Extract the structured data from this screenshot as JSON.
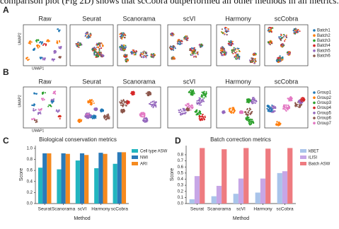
{
  "text": "comparison plot (Fig 2D) shows that scCobra outperformed all other methods in all metrics.",
  "panel_a": {
    "label": "A",
    "x_label": "UMAP1",
    "y_label": "UMAP2",
    "methods": [
      "Raw",
      "Seurat",
      "Scanorama",
      "scVI",
      "Harmony",
      "scCobra"
    ],
    "legend": [
      "Batch1",
      "Batch2",
      "Batch3",
      "Batch4",
      "Batch5",
      "Batch6"
    ],
    "colors": [
      "#1f77b4",
      "#ff7f0e",
      "#2ca02c",
      "#d62728",
      "#9467bd",
      "#8c564b"
    ]
  },
  "panel_b": {
    "label": "B",
    "x_label": "UMAP1",
    "y_label": "UMAP2",
    "methods": [
      "Raw",
      "Seurat",
      "Scanorama",
      "scVI",
      "Harmony",
      "scCobra"
    ],
    "legend": [
      "Group1",
      "Group2",
      "Group3",
      "Group4",
      "Group5",
      "Group6",
      "Group7"
    ],
    "colors": [
      "#1f77b4",
      "#ff7f0e",
      "#2ca02c",
      "#d62728",
      "#9467bd",
      "#8c564b",
      "#e377c2"
    ]
  },
  "chart_data": [
    {
      "type": "bar",
      "label": "C",
      "title": "Biological conservation metrics",
      "x_label": "Method",
      "y_label": "Score",
      "categories": [
        "Seurat",
        "Scanorama",
        "scVI",
        "Harmony",
        "scCobra"
      ],
      "series": [
        {
          "name": "Cell type ASW",
          "color": "#22b5bf",
          "values": [
            0.65,
            0.62,
            0.78,
            0.64,
            0.72
          ]
        },
        {
          "name": "NMI",
          "color": "#2a7ab9",
          "values": [
            0.91,
            0.91,
            0.91,
            0.92,
            0.93
          ]
        },
        {
          "name": "ARI",
          "color": "#f58a1f",
          "values": [
            0.91,
            0.9,
            0.88,
            0.9,
            0.93
          ]
        }
      ],
      "ylim": [
        0,
        1.05
      ],
      "yticks": [
        {
          "value": 0,
          "label": "0.0"
        },
        {
          "value": 0.2,
          "label": "0.2"
        },
        {
          "value": 0.4,
          "label": "0.4"
        },
        {
          "value": 0.6,
          "label": "0.6"
        },
        {
          "value": 0.8,
          "label": "0.8"
        },
        {
          "value": 1,
          "label": "1.0"
        }
      ],
      "legend": "outside right"
    },
    {
      "type": "bar",
      "label": "D",
      "title": "Batch correction metrics",
      "x_label": "Method",
      "y_label": "Score",
      "categories": [
        "Seurat",
        "Scanorama",
        "scVI",
        "Harmony",
        "scCobra"
      ],
      "series": [
        {
          "name": "kBET",
          "color": "#a9c4ea",
          "values": [
            0.07,
            0.12,
            0.16,
            0.18,
            0.5
          ]
        },
        {
          "name": "iLISI",
          "color": "#c7a6e6",
          "values": [
            0.45,
            0.29,
            0.41,
            0.41,
            0.53
          ]
        },
        {
          "name": "Batch ASW",
          "color": "#ee7b80",
          "values": [
            0.91,
            0.89,
            0.91,
            0.9,
            0.91
          ]
        }
      ],
      "ylim": [
        0,
        0.95
      ],
      "yticks": [
        {
          "value": 0,
          "label": "0.0"
        },
        {
          "value": 0.1,
          "label": "0.1"
        },
        {
          "value": 0.2,
          "label": "0.2"
        },
        {
          "value": 0.3,
          "label": "0.3"
        },
        {
          "value": 0.4,
          "label": "0.4"
        },
        {
          "value": 0.5,
          "label": "0.5"
        },
        {
          "value": 0.6,
          "label": "0.6"
        },
        {
          "value": 0.7,
          "label": "0.7"
        },
        {
          "value": 0.8,
          "label": "0.8"
        }
      ],
      "legend": "outside right"
    }
  ]
}
